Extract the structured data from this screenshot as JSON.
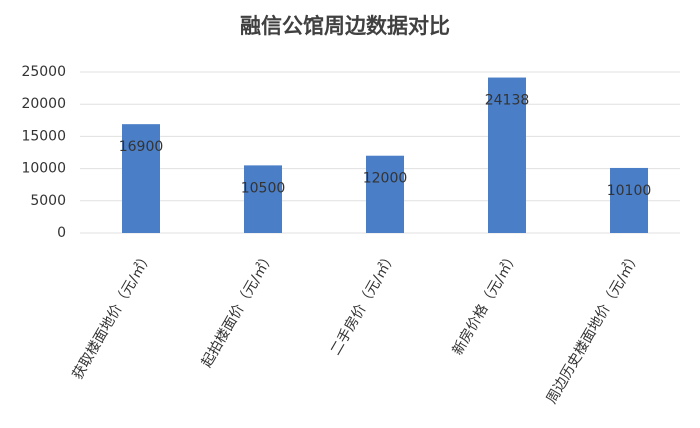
{
  "chart_data": {
    "type": "bar",
    "title": "融信公馆周边数据对比",
    "categories": [
      "获取楼面地价（元/㎡）",
      "起拍楼面价（元/㎡）",
      "二手房价（元/㎡）",
      "新房价格（元/㎡）",
      "周边历史楼面地价（元/㎡）"
    ],
    "values": [
      16900,
      10500,
      12000,
      24138,
      10100
    ],
    "color": "#4a7ec6",
    "ylim": [
      0,
      25000
    ],
    "yticks": [
      0,
      5000,
      10000,
      15000,
      20000,
      25000
    ],
    "grid": true
  }
}
